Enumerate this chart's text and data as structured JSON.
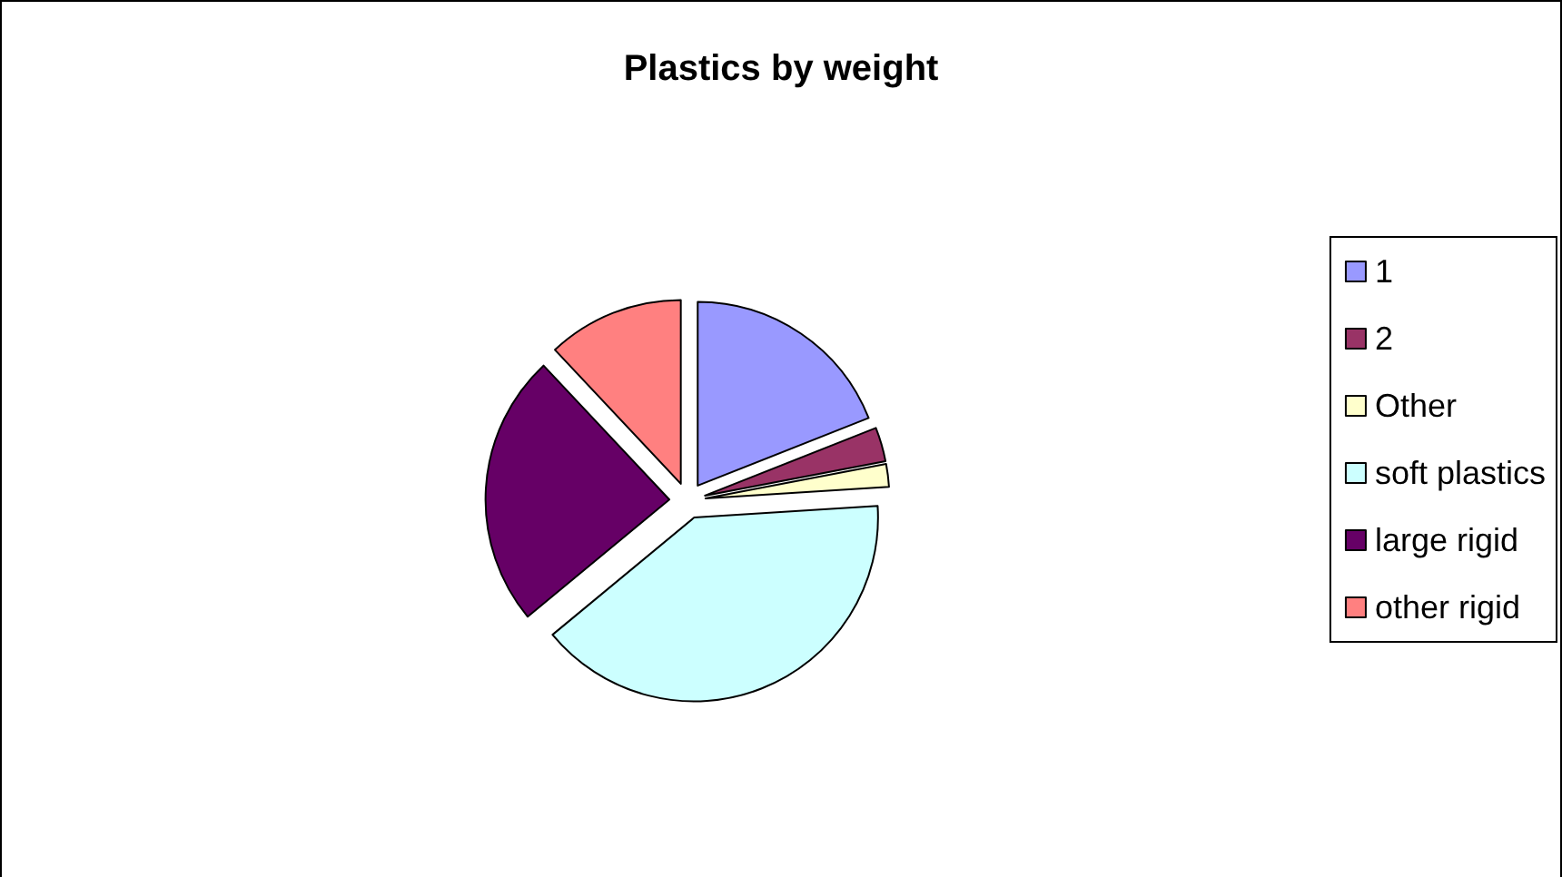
{
  "chart_data": {
    "type": "pie",
    "title": "Plastics by weight",
    "categories": [
      "1",
      "2",
      "Other",
      "soft plastics",
      "large rigid",
      "other rigid"
    ],
    "values": [
      19,
      3,
      2,
      40,
      24,
      12
    ],
    "colors": [
      "#9999ff",
      "#993366",
      "#ffffcc",
      "#ccffff",
      "#660066",
      "#ff8080"
    ],
    "legend": "right"
  }
}
